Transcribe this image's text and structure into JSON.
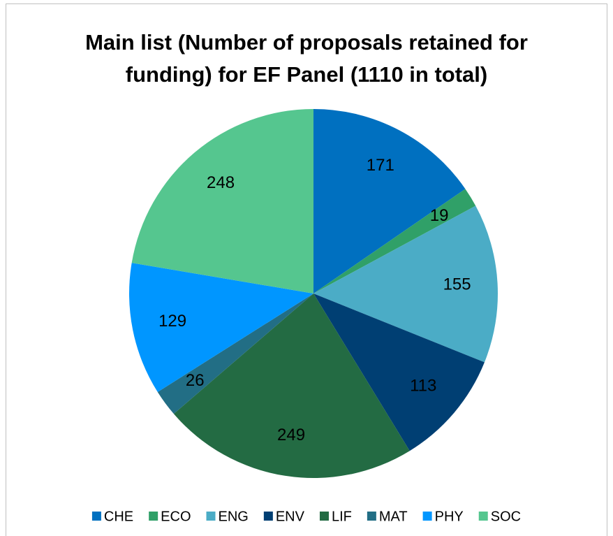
{
  "chart_data": {
    "type": "pie",
    "title": "Main list (Number of proposals retained for funding) for EF Panel (1110 in total)",
    "categories": [
      "CHE",
      "ECO",
      "ENG",
      "ENV",
      "LIF",
      "MAT",
      "PHY",
      "SOC"
    ],
    "values": [
      171,
      19,
      155,
      113,
      249,
      26,
      129,
      248
    ],
    "colors": [
      "#0070c0",
      "#30a068",
      "#4bacc6",
      "#003f73",
      "#236b43",
      "#226e85",
      "#0096ff",
      "#55c68f"
    ],
    "legend": "bottom"
  }
}
